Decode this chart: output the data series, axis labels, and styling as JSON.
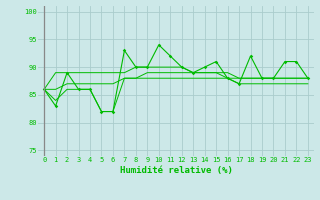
{
  "xlabel": "Humidité relative (%)",
  "bg_color": "#cce8e8",
  "grid_color": "#aacccc",
  "line_color": "#00bb00",
  "axis_line_color": "#888888",
  "ylim": [
    74,
    101
  ],
  "xlim": [
    -0.5,
    23.5
  ],
  "yticks": [
    75,
    80,
    85,
    90,
    95,
    100
  ],
  "xticks": [
    0,
    1,
    2,
    3,
    4,
    5,
    6,
    7,
    8,
    9,
    10,
    11,
    12,
    13,
    14,
    15,
    16,
    17,
    18,
    19,
    20,
    21,
    22,
    23
  ],
  "xlabel_fontsize": 6.5,
  "tick_fontsize": 5.0,
  "series": [
    [
      86,
      83,
      89,
      86,
      86,
      82,
      82,
      93,
      90,
      90,
      94,
      92,
      90,
      89,
      90,
      91,
      88,
      87,
      92,
      88,
      88,
      91,
      91,
      88
    ],
    [
      86,
      89,
      89,
      89,
      89,
      89,
      89,
      89,
      90,
      90,
      90,
      90,
      90,
      89,
      89,
      89,
      89,
      88,
      88,
      88,
      88,
      88,
      88,
      88
    ],
    [
      86,
      86,
      87,
      87,
      87,
      87,
      87,
      88,
      88,
      88,
      88,
      88,
      88,
      88,
      88,
      88,
      88,
      88,
      88,
      88,
      88,
      88,
      88,
      88
    ],
    [
      86,
      84,
      86,
      86,
      86,
      82,
      82,
      88,
      88,
      89,
      89,
      89,
      89,
      89,
      89,
      89,
      88,
      87,
      87,
      87,
      87,
      87,
      87,
      87
    ]
  ]
}
